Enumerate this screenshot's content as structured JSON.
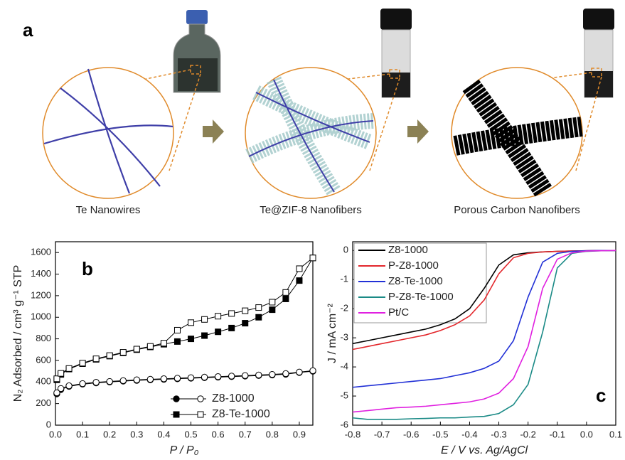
{
  "schematic": {
    "label": "a",
    "captions": [
      "Te Nanowires",
      "Te@ZIF-8 Nanofibers",
      "Porous Carbon Nanofibers"
    ]
  },
  "chart_data": [
    {
      "type": "isotherm",
      "panel_label": "b",
      "xlabel": "P / P₀",
      "ylabel": "N₂ Adsorbed / cm³ g⁻¹ STP",
      "xlim": [
        0,
        0.95
      ],
      "ylim": [
        0,
        1700
      ],
      "xticks": [
        {
          "value": 0,
          "label": "0.0"
        },
        0.1,
        0.2,
        0.3,
        0.4,
        0.5,
        0.6,
        0.7,
        0.8,
        0.9
      ],
      "yticks": [
        0,
        200,
        400,
        600,
        800,
        1000,
        1200,
        1400,
        1600
      ],
      "x": [
        0.005,
        0.02,
        0.05,
        0.1,
        0.15,
        0.2,
        0.25,
        0.3,
        0.35,
        0.4,
        0.45,
        0.5,
        0.55,
        0.6,
        0.65,
        0.7,
        0.75,
        0.8,
        0.85,
        0.9,
        0.95
      ],
      "series": [
        {
          "name": "Z8-1000",
          "marker": "circle",
          "color": "#000000",
          "adsorption": [
            290,
            330,
            360,
            380,
            392,
            400,
            408,
            415,
            420,
            425,
            430,
            435,
            440,
            445,
            450,
            455,
            460,
            465,
            472,
            488,
            500
          ],
          "desorption": [
            300,
            340,
            365,
            385,
            397,
            405,
            413,
            420,
            425,
            430,
            435,
            440,
            445,
            450,
            455,
            460,
            465,
            470,
            478,
            492,
            505
          ]
        },
        {
          "name": "Z8-Te-1000",
          "marker": "square",
          "color": "#000000",
          "adsorption": [
            420,
            470,
            520,
            570,
            610,
            640,
            670,
            700,
            725,
            750,
            775,
            800,
            830,
            865,
            900,
            945,
            1000,
            1070,
            1170,
            1340,
            1550
          ],
          "desorption": [
            430,
            480,
            525,
            575,
            615,
            645,
            675,
            705,
            730,
            760,
            880,
            950,
            980,
            1010,
            1035,
            1060,
            1090,
            1140,
            1230,
            1450,
            1550
          ]
        }
      ]
    },
    {
      "type": "line",
      "panel_label": "c",
      "xlabel": "E / V  vs. Ag/AgCl",
      "ylabel": "J / mA cm⁻²",
      "xlim": [
        -0.8,
        0.1
      ],
      "ylim": [
        -6,
        0.3
      ],
      "xticks": [
        -0.8,
        -0.7,
        -0.6,
        -0.5,
        -0.4,
        -0.3,
        -0.2,
        -0.1,
        {
          "value": 0,
          "label": "0.0"
        },
        0.1
      ],
      "yticks": [
        0,
        -1,
        -2,
        -3,
        -4,
        -5,
        -6
      ],
      "x": [
        -0.8,
        -0.75,
        -0.7,
        -0.65,
        -0.6,
        -0.55,
        -0.5,
        -0.45,
        -0.4,
        -0.35,
        -0.3,
        -0.25,
        -0.2,
        -0.15,
        -0.1,
        -0.05,
        0,
        0.05,
        0.1
      ],
      "series": [
        {
          "name": "Z8-1000",
          "color": "#000000",
          "values": [
            -3.2,
            -3.1,
            -3.0,
            -2.9,
            -2.8,
            -2.7,
            -2.55,
            -2.35,
            -2.0,
            -1.3,
            -0.5,
            -0.15,
            -0.08,
            -0.05,
            -0.03,
            -0.02,
            -0.01,
            0,
            0
          ]
        },
        {
          "name": "P-Z8-1000",
          "color": "#e3262b",
          "values": [
            -3.4,
            -3.3,
            -3.2,
            -3.1,
            -3.0,
            -2.9,
            -2.75,
            -2.55,
            -2.25,
            -1.7,
            -0.8,
            -0.25,
            -0.1,
            -0.05,
            -0.03,
            -0.02,
            -0.01,
            0,
            0
          ]
        },
        {
          "name": "Z8-Te-1000",
          "color": "#2231d6",
          "values": [
            -4.7,
            -4.65,
            -4.6,
            -4.55,
            -4.5,
            -4.45,
            -4.4,
            -4.3,
            -4.2,
            -4.05,
            -3.8,
            -3.1,
            -1.6,
            -0.4,
            -0.1,
            -0.03,
            -0.01,
            0,
            0
          ]
        },
        {
          "name": "P-Z8-Te-1000",
          "color": "#1a8a86",
          "values": [
            -5.75,
            -5.8,
            -5.8,
            -5.8,
            -5.78,
            -5.77,
            -5.75,
            -5.75,
            -5.72,
            -5.7,
            -5.6,
            -5.3,
            -4.6,
            -2.8,
            -0.6,
            -0.1,
            -0.03,
            -0.01,
            0
          ]
        },
        {
          "name": "Pt/C",
          "color": "#e020e0",
          "values": [
            -5.55,
            -5.5,
            -5.45,
            -5.4,
            -5.38,
            -5.35,
            -5.3,
            -5.25,
            -5.2,
            -5.1,
            -4.9,
            -4.4,
            -3.3,
            -1.3,
            -0.3,
            -0.08,
            -0.02,
            -0.01,
            0
          ]
        }
      ]
    }
  ]
}
